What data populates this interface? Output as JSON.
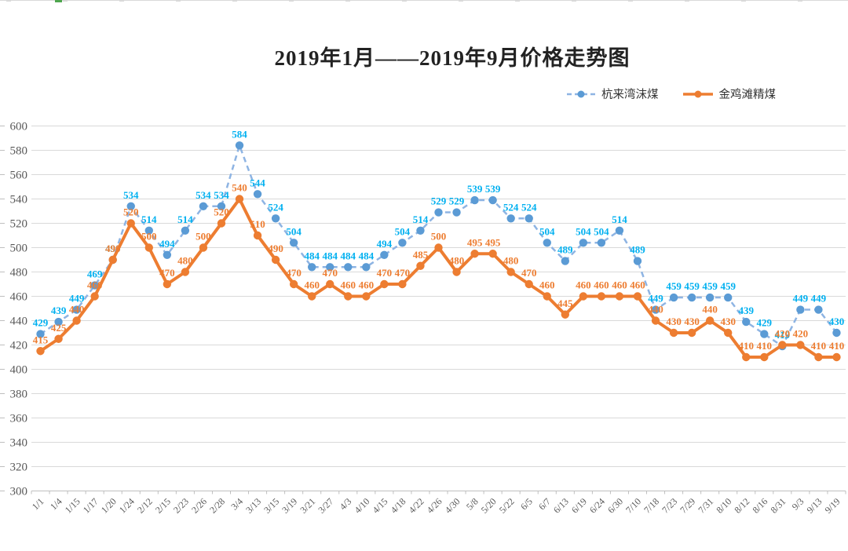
{
  "title": "2019年1月——2019年9月价格走势图",
  "colors": {
    "blue_marker": "#5B9BD5",
    "blue_dash_line": "#8EB4E3",
    "blue_label": "#00B0F0",
    "orange_line": "#ED7D31",
    "orange_label": "#ED7D31",
    "gridline": "#D9D9D9",
    "axis": "#BFBFBF",
    "tick_text": "#595959"
  },
  "chart_data": {
    "type": "line",
    "title": "2019年1月——2019年9月价格走势图",
    "xlabel": "",
    "ylabel": "",
    "ylim": [
      300,
      600
    ],
    "ytick_step": 20,
    "yticks": [
      300,
      320,
      340,
      360,
      380,
      400,
      420,
      440,
      460,
      480,
      500,
      520,
      540,
      560,
      580,
      600
    ],
    "grid": true,
    "legend_position": "top-right",
    "x": [
      "1/1",
      "1/4",
      "1/15",
      "1/17",
      "1/20",
      "1/24",
      "2/12",
      "2/15",
      "2/23",
      "2/26",
      "2/28",
      "3/4",
      "3/13",
      "3/15",
      "3/19",
      "3/21",
      "3/27",
      "4/3",
      "4/10",
      "4/15",
      "4/18",
      "4/22",
      "4/26",
      "4/30",
      "5/8",
      "5/20",
      "5/22",
      "6/5",
      "6/7",
      "6/13",
      "6/19",
      "6/24",
      "6/30",
      "7/10",
      "7/18",
      "7/23",
      "7/29",
      "7/31",
      "8/10",
      "8/12",
      "8/16",
      "8/31",
      "9/3",
      "9/13",
      "9/19"
    ],
    "series": [
      {
        "name": "杭来湾沫煤",
        "style": "dashed",
        "marker_color": "#5B9BD5",
        "line_color": "#8EB4E3",
        "label_color": "#00B0F0",
        "values": [
          429,
          439,
          449,
          469,
          490,
          534,
          514,
          494,
          514,
          534,
          534,
          584,
          544,
          524,
          504,
          484,
          484,
          484,
          484,
          494,
          504,
          514,
          529,
          529,
          539,
          539,
          524,
          524,
          504,
          489,
          504,
          504,
          514,
          489,
          449,
          459,
          459,
          459,
          459,
          439,
          429,
          419,
          449,
          449,
          430
        ]
      },
      {
        "name": "金鸡滩精煤",
        "style": "solid",
        "marker_color": "#ED7D31",
        "line_color": "#ED7D31",
        "label_color": "#ED7D31",
        "values": [
          415,
          425,
          440,
          460,
          490,
          520,
          500,
          470,
          480,
          500,
          520,
          540,
          510,
          490,
          470,
          460,
          470,
          460,
          460,
          470,
          470,
          485,
          500,
          480,
          495,
          495,
          480,
          470,
          460,
          445,
          460,
          460,
          460,
          460,
          440,
          430,
          430,
          440,
          430,
          410,
          410,
          420,
          420,
          410,
          410
        ]
      }
    ]
  }
}
